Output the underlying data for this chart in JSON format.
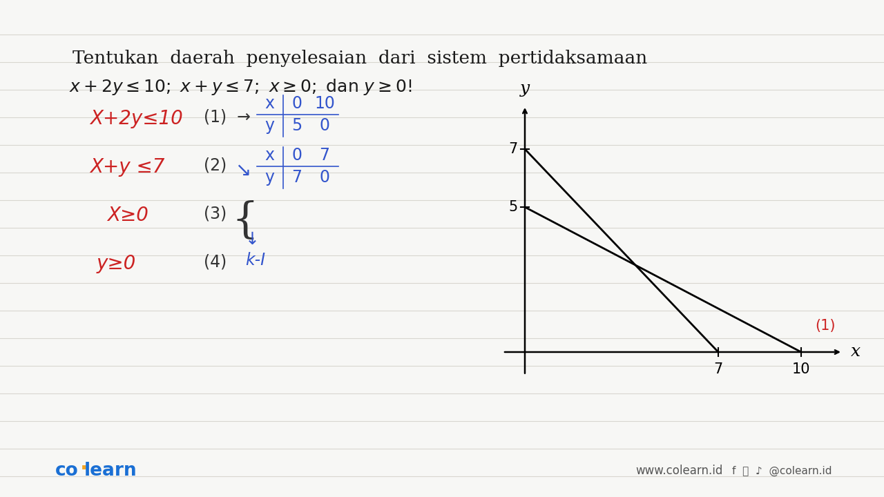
{
  "bg_color": "#f7f7f5",
  "line_color": "#d8d6d0",
  "title_text": "Tentukan  daerah  penyelesaian  dari  sistem  pertidaksamaan",
  "subtitle_text": "x + 2y ≤ 10; x + y ≤ 7; x ≥ 0; dan y ≥ 0!",
  "title_fontsize": 19,
  "subtitle_fontsize": 19,
  "footer_colearn": "co·learn",
  "footer_website": "www.colearn.id",
  "footer_social": "@colearn.id",
  "footer_blue": "#1a6fd4",
  "footer_dot_color": "#f5a623",
  "horizontal_lines": 16
}
